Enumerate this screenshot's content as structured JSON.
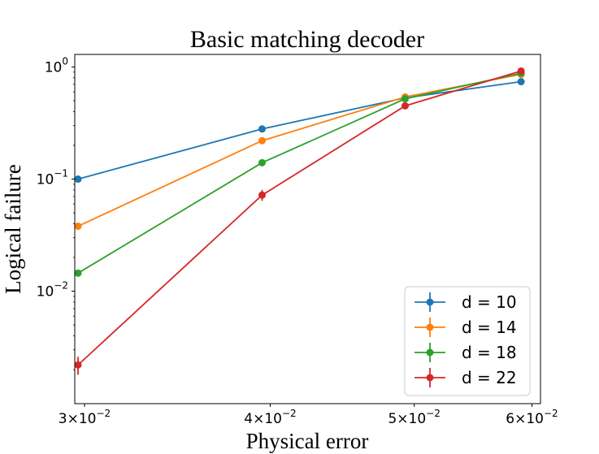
{
  "chart_data": {
    "type": "line",
    "title": "Basic matching decoder",
    "xlabel": "Physical error",
    "ylabel": "Logical failure",
    "xscale": "log",
    "yscale": "log",
    "xlim": [
      0.02955,
      0.0608
    ],
    "ylim": [
      0.000994,
      1.294
    ],
    "x": [
      0.0297,
      0.0395,
      0.0493,
      0.059
    ],
    "x_ticks": [
      {
        "value": 0.03,
        "mantissa": "3",
        "exp": "−2"
      },
      {
        "value": 0.04,
        "mantissa": "4",
        "exp": "−2"
      },
      {
        "value": 0.05,
        "mantissa": "5",
        "exp": "−2"
      },
      {
        "value": 0.06,
        "mantissa": "6",
        "exp": "−2"
      }
    ],
    "y_ticks": [
      {
        "value": 1,
        "exp": "0"
      },
      {
        "value": 0.1,
        "exp": "−1"
      },
      {
        "value": 0.01,
        "exp": "−2"
      }
    ],
    "tick_base": "10",
    "times_sign": "×",
    "legend_position": "lower-right",
    "series": [
      {
        "name": "d = 10",
        "color": "#1f77b4",
        "values": [
          0.1,
          0.28,
          0.53,
          0.74
        ],
        "errors": [
          0.003,
          0.005,
          0.006,
          0.006
        ]
      },
      {
        "name": "d = 14",
        "color": "#ff7f0e",
        "values": [
          0.038,
          0.22,
          0.54,
          0.86
        ],
        "errors": [
          0.0015,
          0.005,
          0.006,
          0.006
        ]
      },
      {
        "name": "d = 18",
        "color": "#2ca02c",
        "values": [
          0.0145,
          0.14,
          0.52,
          0.88
        ],
        "errors": [
          0.0008,
          0.005,
          0.006,
          0.006
        ]
      },
      {
        "name": "d = 22",
        "color": "#d62728",
        "values": [
          0.0022,
          0.072,
          0.45,
          0.92
        ],
        "errors": [
          0.0004,
          0.008,
          0.008,
          0.006
        ]
      }
    ]
  }
}
